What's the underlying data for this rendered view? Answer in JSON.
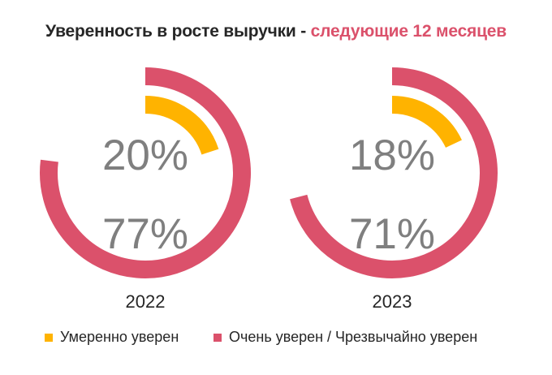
{
  "title": {
    "main": "Уверенность в росте выручки - ",
    "accent": "следующие 12 месяцев"
  },
  "colors": {
    "moderate": "#FFB300",
    "very": "#DB516B",
    "label_text": "#7F7F7F",
    "title_text": "#262626"
  },
  "charts": [
    {
      "year": "2022",
      "moderate_label": "20%",
      "very_label": "77%"
    },
    {
      "year": "2023",
      "moderate_label": "18%",
      "very_label": "71%"
    }
  ],
  "legend": [
    {
      "label": "Умеренно уверен",
      "color": "#FFB300"
    },
    {
      "label": "Очень уверен / Чрезвычайно уверен",
      "color": "#DB516B"
    }
  ],
  "chart_data": [
    {
      "type": "pie",
      "subtype": "radial-donut",
      "title": "Уверенность в росте выручки - следующие 12 месяцев",
      "category": "2022",
      "series": [
        {
          "name": "Умеренно уверен",
          "value": 20,
          "unit": "%"
        },
        {
          "name": "Очень уверен / Чрезвычайно уверен",
          "value": 77,
          "unit": "%"
        }
      ],
      "legend_position": "bottom"
    },
    {
      "type": "pie",
      "subtype": "radial-donut",
      "title": "Уверенность в росте выручки - следующие 12 месяцев",
      "category": "2023",
      "series": [
        {
          "name": "Умеренно уверен",
          "value": 18,
          "unit": "%"
        },
        {
          "name": "Очень уверен / Чрезвычайно уверен",
          "value": 71,
          "unit": "%"
        }
      ],
      "legend_position": "bottom"
    }
  ]
}
